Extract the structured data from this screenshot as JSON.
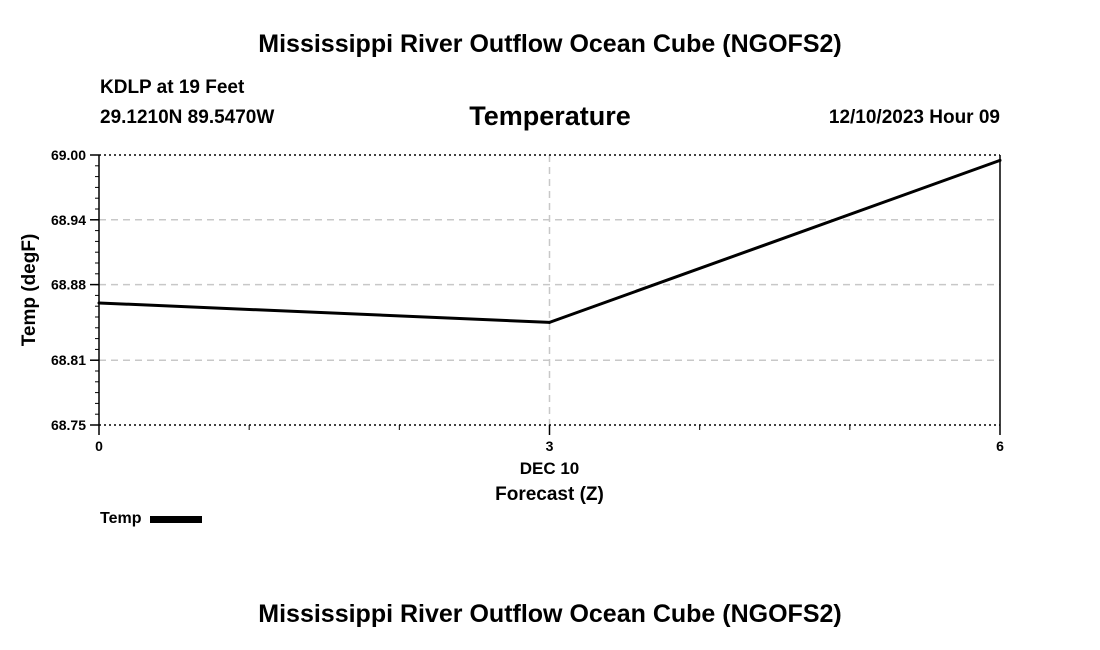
{
  "page_title": "Mississippi River Outflow Ocean Cube (NGOFS2)",
  "station": "KDLP at 19 Feet",
  "coords": "29.1210N  89.5470W",
  "date": "12/10/2023 Hour 09",
  "chart_data": {
    "type": "line",
    "title": "Temperature",
    "xlabel": "Forecast (Z)",
    "x_sublabel": "DEC 10",
    "ylabel": "Temp (degF)",
    "xlim": [
      0,
      6
    ],
    "ylim": [
      68.75,
      69.0
    ],
    "xticks": [
      0,
      3,
      6
    ],
    "xtick_labels": [
      "0",
      "3",
      "6"
    ],
    "yticks": [
      68.75,
      68.81,
      68.88,
      68.94,
      69.0
    ],
    "ytick_labels": [
      "68.75",
      "68.81",
      "68.88",
      "68.94",
      "69.00"
    ],
    "grid": true,
    "legend_position": "bottom-left",
    "series": [
      {
        "name": "Temp",
        "x": [
          0,
          3,
          6
        ],
        "values": [
          68.863,
          68.845,
          68.995
        ]
      }
    ]
  }
}
